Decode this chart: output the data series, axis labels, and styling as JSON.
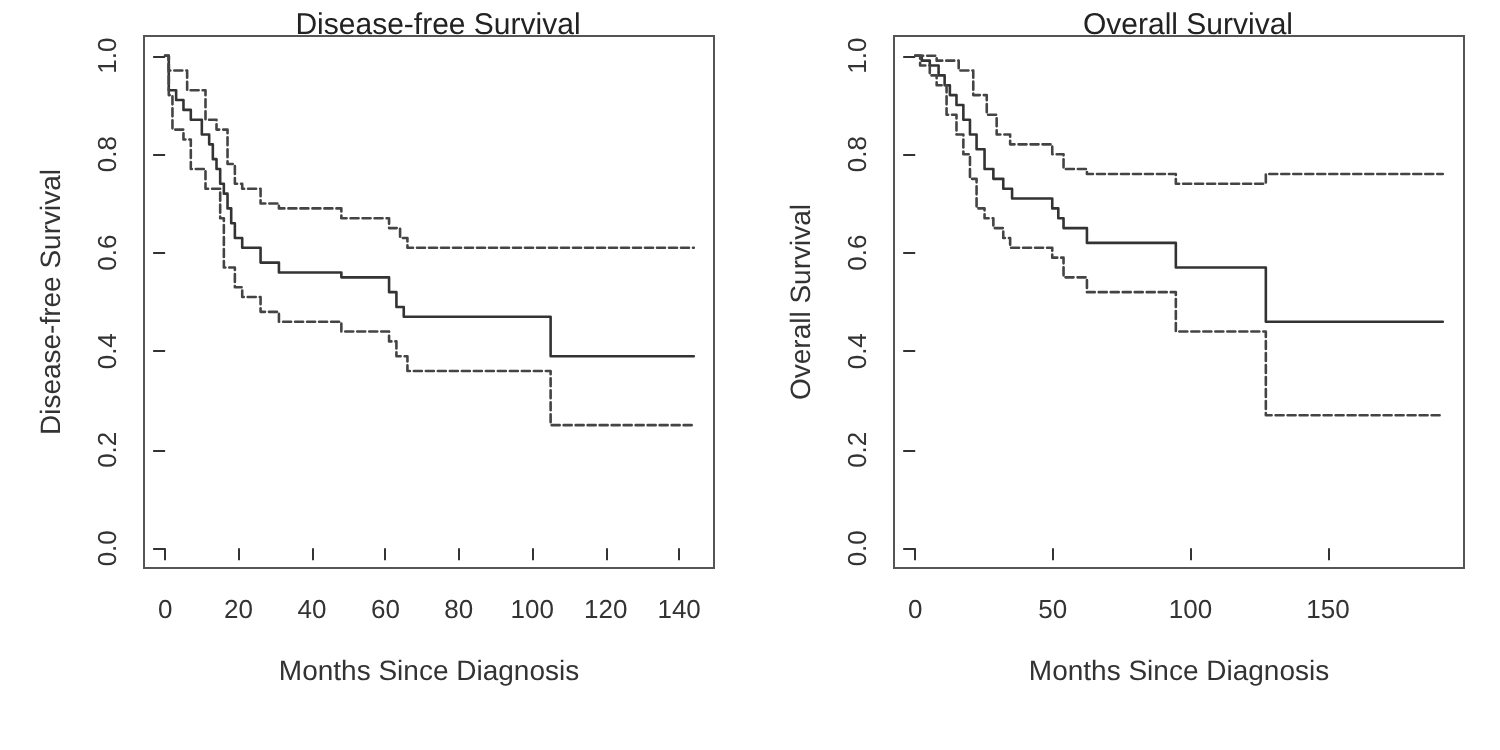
{
  "chart_data": [
    {
      "type": "step",
      "title": "Disease-free Survival",
      "xlabel": "Months Since Diagnosis",
      "ylabel": "Disease-free Survival",
      "xlim": [
        -5.75,
        149.5
      ],
      "xticks": [
        0,
        20,
        40,
        60,
        80,
        100,
        120,
        140
      ],
      "ylim": [
        -0.04,
        1.04
      ],
      "yticks": [
        {
          "value": 0,
          "label": "0.0"
        },
        {
          "value": 0.2,
          "label": "0.2"
        },
        {
          "value": 0.4,
          "label": "0.4"
        },
        {
          "value": 0.6,
          "label": "0.6"
        },
        {
          "value": 0.8,
          "label": "0.8"
        },
        {
          "value": 1,
          "label": "1.0"
        }
      ],
      "grid": false,
      "marker": "none",
      "series": [
        {
          "color": "#333333",
          "line_style": "solid",
          "x": [
            0,
            1,
            3,
            5,
            7,
            10,
            12,
            13,
            14,
            15,
            16,
            17,
            18,
            19,
            21,
            26,
            31,
            48,
            61,
            63,
            65,
            105,
            144
          ],
          "values": [
            1,
            0.93,
            0.91,
            0.89,
            0.87,
            0.84,
            0.82,
            0.79,
            0.77,
            0.74,
            0.72,
            0.69,
            0.66,
            0.63,
            0.61,
            0.58,
            0.56,
            0.55,
            0.52,
            0.49,
            0.47,
            0.39,
            0.39
          ]
        },
        {
          "color": "#444444",
          "line_style": "dashed",
          "x": [
            0,
            1,
            6,
            11,
            14,
            17,
            19,
            21,
            26,
            31,
            48,
            61,
            64,
            66,
            105,
            144
          ],
          "values": [
            1,
            0.97,
            0.93,
            0.87,
            0.85,
            0.78,
            0.74,
            0.73,
            0.7,
            0.69,
            0.67,
            0.65,
            0.63,
            0.61,
            0.61,
            0.61
          ]
        },
        {
          "color": "#444444",
          "line_style": "dashed",
          "x": [
            0,
            1,
            2,
            5,
            7,
            11,
            15,
            16,
            19,
            21,
            26,
            31,
            48,
            61,
            63,
            66,
            105,
            144
          ],
          "values": [
            1,
            0.92,
            0.85,
            0.83,
            0.77,
            0.73,
            0.67,
            0.57,
            0.53,
            0.51,
            0.48,
            0.46,
            0.44,
            0.42,
            0.39,
            0.36,
            0.25,
            0.25
          ]
        }
      ]
    },
    {
      "type": "step",
      "title": "Overall Survival",
      "xlabel": "Months Since Diagnosis",
      "ylabel": "Overall Survival",
      "xlim": [
        -7.7,
        199.4
      ],
      "xticks": [
        0,
        50,
        100,
        150
      ],
      "ylim": [
        -0.04,
        1.04
      ],
      "yticks": [
        {
          "value": 0,
          "label": "0.0"
        },
        {
          "value": 0.2,
          "label": "0.2"
        },
        {
          "value": 0.4,
          "label": "0.4"
        },
        {
          "value": 0.6,
          "label": "0.6"
        },
        {
          "value": 0.8,
          "label": "0.8"
        },
        {
          "value": 1,
          "label": "1.0"
        }
      ],
      "grid": false,
      "marker": "none",
      "series": [
        {
          "color": "#333333",
          "line_style": "solid",
          "x": [
            0,
            2.4,
            5.3,
            8.5,
            10.7,
            12.6,
            15,
            17.5,
            19.9,
            22.3,
            25.2,
            28.4,
            32,
            35.2,
            49.8,
            52,
            53.9,
            62.4,
            94.7,
            127.4,
            191.7
          ],
          "values": [
            1,
            0.99,
            0.98,
            0.96,
            0.94,
            0.92,
            0.9,
            0.87,
            0.84,
            0.81,
            0.77,
            0.75,
            0.73,
            0.71,
            0.69,
            0.67,
            0.65,
            0.62,
            0.57,
            0.46,
            0.46
          ]
        },
        {
          "color": "#444444",
          "line_style": "dashed",
          "x": [
            0,
            7.8,
            15.8,
            21.1,
            26,
            29.6,
            34.5,
            49.8,
            53.9,
            62.4,
            94.7,
            127.4,
            191.7
          ],
          "values": [
            1,
            0.99,
            0.97,
            0.92,
            0.88,
            0.84,
            0.82,
            0.8,
            0.77,
            0.76,
            0.74,
            0.76,
            0.76
          ]
        },
        {
          "color": "#444444",
          "line_style": "dashed",
          "x": [
            0,
            1.8,
            5.3,
            7.8,
            11.4,
            15,
            17.5,
            19.9,
            22.3,
            25.2,
            28.4,
            32,
            34.5,
            49.8,
            53.9,
            62.4,
            94.7,
            127.4,
            191.7
          ],
          "values": [
            1,
            0.98,
            0.96,
            0.94,
            0.88,
            0.84,
            0.8,
            0.75,
            0.69,
            0.67,
            0.65,
            0.63,
            0.61,
            0.59,
            0.55,
            0.52,
            0.44,
            0.27,
            0.27
          ]
        }
      ]
    }
  ]
}
